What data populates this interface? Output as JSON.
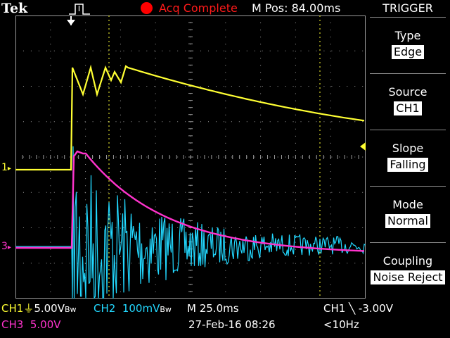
{
  "header": {
    "brand": "Tek",
    "acq_status": "Acq Complete",
    "m_pos": "M Pos: 84.00ms"
  },
  "markers": {
    "ch1": "1",
    "ch3": "3"
  },
  "menu": {
    "title": "TRIGGER",
    "items": [
      {
        "label": "Type",
        "value": "Edge"
      },
      {
        "label": "Source",
        "value": "CH1"
      },
      {
        "label": "Slope",
        "value": "Falling"
      },
      {
        "label": "Mode",
        "value": "Normal"
      },
      {
        "label": "Coupling",
        "value": "Noise Reject"
      }
    ]
  },
  "status": {
    "ch1_scale": "CH1",
    "ch1_value": "5.00V",
    "ch1_bw": "Bw",
    "ch2_scale": "CH2",
    "ch2_value": "100mV",
    "ch2_bw": "Bw",
    "timebase": "M 25.0ms",
    "trigger_source": "CH1",
    "trigger_level": "-3.00V",
    "ch3_scale": "CH3",
    "ch3_value": "5.00V",
    "datetime": "27-Feb-16 08:26",
    "trigger_freq": "<10Hz"
  },
  "colors": {
    "ch1": "#ffff33",
    "ch2": "#22d8ff",
    "ch3": "#ff33cc",
    "acq": "#ff0000",
    "grid": "#9a9a9a"
  }
}
